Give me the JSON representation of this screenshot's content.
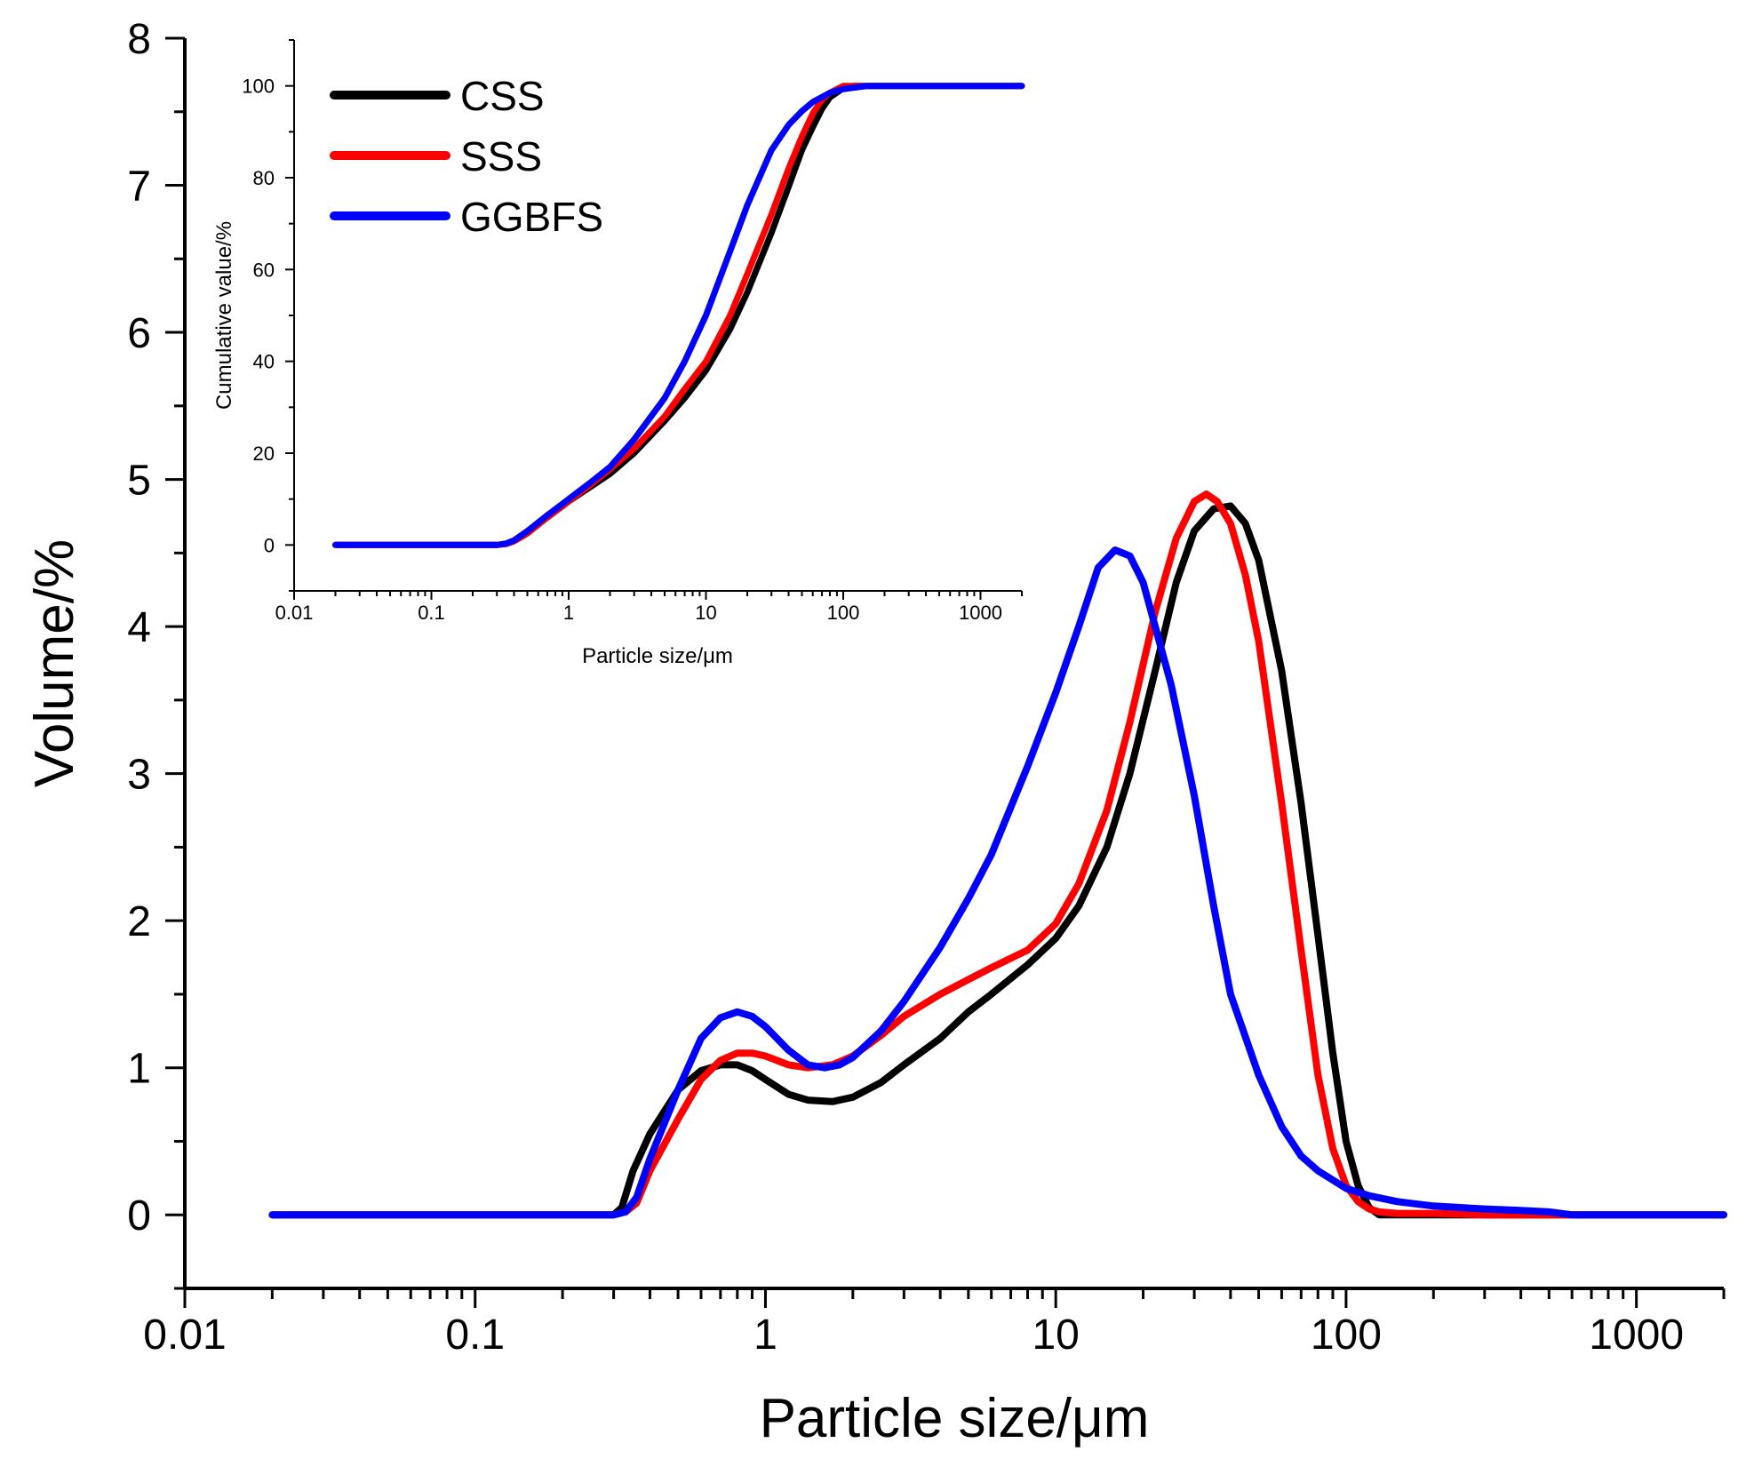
{
  "colors": {
    "CSS": "#000000",
    "SSS": "#ff0000",
    "GGBFS": "#0000ff"
  },
  "chart_data": [
    {
      "type": "line",
      "xlabel": "Particle size/μm",
      "ylabel": "Volume/%",
      "xscale": "log",
      "xlim": [
        0.01,
        2000
      ],
      "ylim": [
        -0.5,
        8
      ],
      "x_ticks": [
        0.01,
        0.1,
        1,
        10,
        100,
        1000
      ],
      "x_tick_labels": [
        "0.01",
        "0.1",
        "1",
        "10",
        "100",
        "1000"
      ],
      "y_ticks": [
        0,
        1,
        2,
        3,
        4,
        5,
        6,
        7,
        8
      ],
      "y_tick_labels": [
        "0",
        "1",
        "2",
        "3",
        "4",
        "5",
        "6",
        "7",
        "8"
      ],
      "grid": false,
      "series": [
        {
          "name": "CSS",
          "color": "#000000",
          "x": [
            0.02,
            0.3,
            0.32,
            0.35,
            0.4,
            0.5,
            0.6,
            0.7,
            0.8,
            0.9,
            1.0,
            1.2,
            1.4,
            1.7,
            2.0,
            2.5,
            3,
            4,
            5,
            6,
            8,
            10,
            12,
            15,
            18,
            22,
            26,
            30,
            35,
            40,
            45,
            50,
            60,
            70,
            80,
            90,
            100,
            110,
            120,
            130,
            2000
          ],
          "y": [
            0,
            0,
            0.05,
            0.3,
            0.55,
            0.85,
            0.98,
            1.02,
            1.02,
            0.98,
            0.92,
            0.82,
            0.78,
            0.77,
            0.8,
            0.9,
            1.02,
            1.2,
            1.38,
            1.5,
            1.7,
            1.88,
            2.1,
            2.5,
            3.0,
            3.7,
            4.3,
            4.65,
            4.8,
            4.82,
            4.7,
            4.45,
            3.7,
            2.8,
            1.9,
            1.1,
            0.5,
            0.2,
            0.05,
            0,
            0
          ]
        },
        {
          "name": "SSS",
          "color": "#ff0000",
          "x": [
            0.02,
            0.3,
            0.33,
            0.36,
            0.4,
            0.5,
            0.6,
            0.7,
            0.8,
            0.9,
            1.0,
            1.2,
            1.4,
            1.7,
            2.0,
            2.5,
            3,
            4,
            5,
            6,
            8,
            10,
            12,
            15,
            18,
            22,
            26,
            30,
            33,
            36,
            40,
            45,
            50,
            60,
            70,
            80,
            90,
            100,
            110,
            120,
            130,
            150,
            200,
            300,
            500,
            2000
          ],
          "y": [
            0,
            0,
            0.02,
            0.08,
            0.3,
            0.65,
            0.92,
            1.05,
            1.1,
            1.1,
            1.08,
            1.02,
            1.0,
            1.02,
            1.08,
            1.22,
            1.35,
            1.5,
            1.6,
            1.68,
            1.8,
            1.98,
            2.25,
            2.75,
            3.35,
            4.1,
            4.6,
            4.85,
            4.9,
            4.85,
            4.7,
            4.35,
            3.9,
            2.8,
            1.8,
            0.95,
            0.45,
            0.2,
            0.09,
            0.04,
            0.02,
            0.01,
            0.01,
            0,
            0,
            0
          ]
        },
        {
          "name": "GGBFS",
          "color": "#0000ff",
          "x": [
            0.02,
            0.3,
            0.33,
            0.36,
            0.4,
            0.5,
            0.6,
            0.7,
            0.8,
            0.9,
            1.0,
            1.2,
            1.4,
            1.6,
            1.8,
            2.0,
            2.5,
            3,
            4,
            5,
            6,
            8,
            10,
            12,
            14,
            16,
            18,
            20,
            22,
            25,
            30,
            35,
            40,
            50,
            60,
            70,
            80,
            100,
            120,
            150,
            200,
            300,
            400,
            500,
            600,
            2000
          ],
          "y": [
            0,
            0,
            0.02,
            0.12,
            0.38,
            0.85,
            1.2,
            1.34,
            1.38,
            1.35,
            1.28,
            1.12,
            1.02,
            1.0,
            1.02,
            1.07,
            1.25,
            1.45,
            1.82,
            2.15,
            2.45,
            3.05,
            3.55,
            4.0,
            4.4,
            4.52,
            4.48,
            4.3,
            4.0,
            3.6,
            2.85,
            2.1,
            1.5,
            0.95,
            0.6,
            0.4,
            0.3,
            0.18,
            0.13,
            0.09,
            0.06,
            0.04,
            0.03,
            0.02,
            0,
            0
          ]
        }
      ],
      "legend": {
        "placement": "top-left",
        "entries": [
          "CSS",
          "SSS",
          "GGBFS"
        ]
      }
    },
    {
      "type": "line",
      "role": "inset",
      "xlabel": "Particle size/μm",
      "ylabel": "Cumulative value/%",
      "xscale": "log",
      "xlim": [
        0.01,
        2000
      ],
      "ylim": [
        -10,
        110
      ],
      "x_ticks": [
        0.01,
        0.1,
        1,
        10,
        100,
        1000
      ],
      "x_tick_labels": [
        "0.01",
        "0.1",
        "1",
        "10",
        "100",
        "1000"
      ],
      "y_ticks": [
        0,
        20,
        40,
        60,
        80,
        100
      ],
      "y_tick_labels": [
        "0",
        "20",
        "40",
        "60",
        "80",
        "100"
      ],
      "grid": false,
      "series": [
        {
          "name": "CSS",
          "color": "#000000",
          "x": [
            0.02,
            0.3,
            0.35,
            0.4,
            0.5,
            0.7,
            1.0,
            1.5,
            2,
            3,
            5,
            7,
            10,
            15,
            20,
            30,
            40,
            50,
            60,
            70,
            80,
            100,
            120,
            150,
            2000
          ],
          "y": [
            0,
            0,
            0.3,
            1,
            3,
            6,
            9.5,
            13,
            15.5,
            20,
            27,
            32,
            38,
            47,
            55,
            68,
            78,
            86,
            91,
            95,
            97.5,
            99.5,
            100,
            100,
            100
          ]
        },
        {
          "name": "SSS",
          "color": "#ff0000",
          "x": [
            0.02,
            0.3,
            0.35,
            0.4,
            0.5,
            0.7,
            1.0,
            1.5,
            2,
            3,
            5,
            7,
            10,
            15,
            20,
            30,
            40,
            50,
            60,
            70,
            80,
            100,
            120,
            2000
          ],
          "y": [
            0,
            0,
            0.2,
            0.8,
            2.5,
            6,
            9.5,
            13.5,
            16.5,
            21,
            28,
            34,
            40,
            50,
            59,
            72,
            82,
            89,
            94,
            97,
            98.5,
            100,
            100,
            100
          ]
        },
        {
          "name": "GGBFS",
          "color": "#0000ff",
          "x": [
            0.02,
            0.3,
            0.35,
            0.4,
            0.5,
            0.7,
            1.0,
            1.5,
            2,
            3,
            5,
            7,
            10,
            15,
            20,
            30,
            40,
            50,
            60,
            80,
            100,
            150,
            200,
            2000
          ],
          "y": [
            0,
            0,
            0.3,
            1,
            3,
            6.5,
            10,
            14,
            17,
            23,
            32,
            40,
            50,
            64,
            74,
            86,
            91.5,
            94.5,
            96.5,
            98.5,
            99.3,
            100,
            100,
            100
          ]
        }
      ]
    }
  ]
}
